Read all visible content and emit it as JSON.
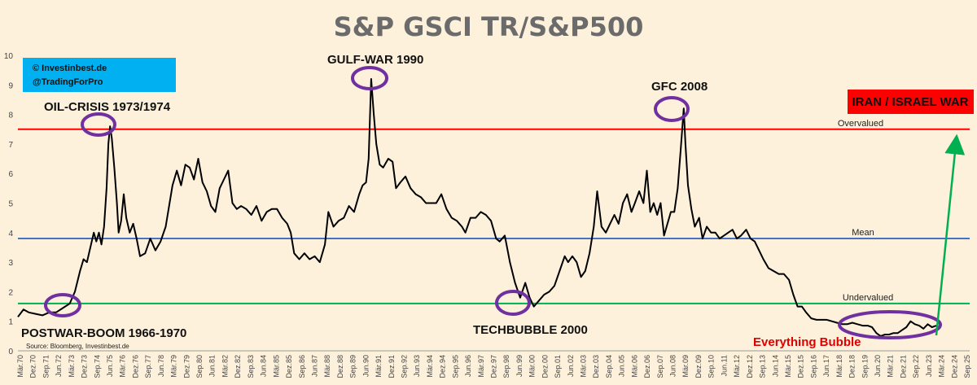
{
  "chart_data": {
    "type": "line",
    "title": "S&P GSCI TR/S&P500",
    "xlabel": "",
    "ylabel": "",
    "ylim": [
      0,
      10
    ],
    "yticks": [
      0,
      1,
      2,
      3,
      4,
      5,
      6,
      7,
      8,
      9,
      10
    ],
    "xlim": [
      1970.17,
      2025.75
    ],
    "xtick_labels": [
      "Mär.70",
      "Dez.70",
      "Sep.71",
      "Jun.72",
      "Mär.73",
      "Dez.73",
      "Sep.74",
      "Jun.75",
      "Mär.76",
      "Dez.76",
      "Sep.77",
      "Jun.78",
      "Mär.79",
      "Dez.79",
      "Sep.80",
      "Jun.81",
      "Mär.82",
      "Dez.82",
      "Sep.83",
      "Jun.84",
      "Mär.85",
      "Dez.85",
      "Sep.86",
      "Jun.87",
      "Mär.88",
      "Dez.88",
      "Sep.89",
      "Jun.90",
      "Mär.91",
      "Dez.91",
      "Sep.92",
      "Jun.93",
      "Mär.94",
      "Dez.94",
      "Sep.95",
      "Jun.96",
      "Mär.97",
      "Dez.97",
      "Sep.98",
      "Jun.99",
      "Mär.00",
      "Dez.00",
      "Sep.01",
      "Jun.02",
      "Mär.03",
      "Dez.03",
      "Sep.04",
      "Jun.05",
      "Mär.06",
      "Dez.06",
      "Sep.07",
      "Jun.08",
      "Mär.09",
      "Dez.09",
      "Sep.10",
      "Jun.11",
      "Mär.12",
      "Dez.12",
      "Sep.13",
      "Jun.14",
      "Mär.15",
      "Dez.15",
      "Sep.16",
      "Jun.17",
      "Mär.18",
      "Dez.18",
      "Sep.19",
      "Jun.20",
      "Mär.21",
      "Dez.21",
      "Sep.22",
      "Jun.23",
      "Mär.24",
      "Dez.24",
      "Sep.25"
    ],
    "grid": false,
    "series": [
      {
        "color": "#000000",
        "points": [
          [
            1970.17,
            1.15
          ],
          [
            1970.5,
            1.4
          ],
          [
            1970.8,
            1.3
          ],
          [
            1971.2,
            1.25
          ],
          [
            1971.6,
            1.2
          ],
          [
            1972.0,
            1.3
          ],
          [
            1972.4,
            1.3
          ],
          [
            1972.8,
            1.45
          ],
          [
            1973.2,
            1.6
          ],
          [
            1973.5,
            2.0
          ],
          [
            1973.8,
            2.7
          ],
          [
            1974.0,
            3.1
          ],
          [
            1974.2,
            3.0
          ],
          [
            1974.4,
            3.5
          ],
          [
            1974.6,
            4.0
          ],
          [
            1974.75,
            3.7
          ],
          [
            1974.9,
            4.0
          ],
          [
            1975.05,
            3.6
          ],
          [
            1975.2,
            4.2
          ],
          [
            1975.35,
            5.5
          ],
          [
            1975.45,
            7.0
          ],
          [
            1975.55,
            7.6
          ],
          [
            1975.65,
            7.2
          ],
          [
            1975.8,
            6.2
          ],
          [
            1975.95,
            5.0
          ],
          [
            1976.05,
            4.0
          ],
          [
            1976.2,
            4.4
          ],
          [
            1976.35,
            5.3
          ],
          [
            1976.5,
            4.5
          ],
          [
            1976.7,
            4.0
          ],
          [
            1976.9,
            4.3
          ],
          [
            1977.1,
            3.8
          ],
          [
            1977.3,
            3.2
          ],
          [
            1977.6,
            3.3
          ],
          [
            1977.9,
            3.8
          ],
          [
            1978.2,
            3.4
          ],
          [
            1978.5,
            3.7
          ],
          [
            1978.8,
            4.2
          ],
          [
            1979.0,
            4.9
          ],
          [
            1979.2,
            5.6
          ],
          [
            1979.45,
            6.1
          ],
          [
            1979.7,
            5.6
          ],
          [
            1979.95,
            6.3
          ],
          [
            1980.2,
            6.2
          ],
          [
            1980.45,
            5.8
          ],
          [
            1980.7,
            6.5
          ],
          [
            1980.95,
            5.7
          ],
          [
            1981.2,
            5.4
          ],
          [
            1981.45,
            4.9
          ],
          [
            1981.7,
            4.7
          ],
          [
            1981.95,
            5.5
          ],
          [
            1982.2,
            5.8
          ],
          [
            1982.45,
            6.1
          ],
          [
            1982.7,
            5.0
          ],
          [
            1982.95,
            4.8
          ],
          [
            1983.2,
            4.9
          ],
          [
            1983.5,
            4.8
          ],
          [
            1983.8,
            4.6
          ],
          [
            1984.1,
            4.9
          ],
          [
            1984.4,
            4.4
          ],
          [
            1984.7,
            4.7
          ],
          [
            1985.0,
            4.8
          ],
          [
            1985.3,
            4.8
          ],
          [
            1985.6,
            4.5
          ],
          [
            1985.9,
            4.3
          ],
          [
            1986.1,
            4.0
          ],
          [
            1986.3,
            3.3
          ],
          [
            1986.6,
            3.1
          ],
          [
            1986.9,
            3.3
          ],
          [
            1987.2,
            3.1
          ],
          [
            1987.5,
            3.2
          ],
          [
            1987.8,
            3.0
          ],
          [
            1988.1,
            3.6
          ],
          [
            1988.3,
            4.7
          ],
          [
            1988.6,
            4.2
          ],
          [
            1988.9,
            4.4
          ],
          [
            1989.2,
            4.5
          ],
          [
            1989.5,
            4.9
          ],
          [
            1989.8,
            4.7
          ],
          [
            1990.1,
            5.3
          ],
          [
            1990.3,
            5.6
          ],
          [
            1990.5,
            5.7
          ],
          [
            1990.65,
            6.5
          ],
          [
            1990.8,
            9.2
          ],
          [
            1990.95,
            8.0
          ],
          [
            1991.1,
            7.0
          ],
          [
            1991.3,
            6.3
          ],
          [
            1991.5,
            6.2
          ],
          [
            1991.8,
            6.5
          ],
          [
            1992.05,
            6.4
          ],
          [
            1992.25,
            5.5
          ],
          [
            1992.5,
            5.7
          ],
          [
            1992.8,
            5.9
          ],
          [
            1993.1,
            5.5
          ],
          [
            1993.4,
            5.3
          ],
          [
            1993.7,
            5.2
          ],
          [
            1994.0,
            5.0
          ],
          [
            1994.3,
            5.0
          ],
          [
            1994.6,
            5.0
          ],
          [
            1994.9,
            5.3
          ],
          [
            1995.2,
            4.8
          ],
          [
            1995.5,
            4.5
          ],
          [
            1995.8,
            4.4
          ],
          [
            1996.1,
            4.2
          ],
          [
            1996.3,
            4.0
          ],
          [
            1996.6,
            4.5
          ],
          [
            1996.9,
            4.5
          ],
          [
            1997.2,
            4.7
          ],
          [
            1997.5,
            4.6
          ],
          [
            1997.8,
            4.4
          ],
          [
            1998.1,
            3.8
          ],
          [
            1998.3,
            3.7
          ],
          [
            1998.6,
            3.9
          ],
          [
            1998.9,
            3.0
          ],
          [
            1999.2,
            2.3
          ],
          [
            1999.5,
            1.8
          ],
          [
            1999.8,
            2.3
          ],
          [
            2000.05,
            1.8
          ],
          [
            2000.3,
            1.5
          ],
          [
            2000.6,
            1.7
          ],
          [
            2000.9,
            1.9
          ],
          [
            2001.2,
            2.0
          ],
          [
            2001.5,
            2.2
          ],
          [
            2001.8,
            2.7
          ],
          [
            2002.1,
            3.2
          ],
          [
            2002.3,
            3.0
          ],
          [
            2002.55,
            3.2
          ],
          [
            2002.8,
            3.0
          ],
          [
            2003.05,
            2.5
          ],
          [
            2003.3,
            2.7
          ],
          [
            2003.55,
            3.3
          ],
          [
            2003.8,
            4.2
          ],
          [
            2004.0,
            5.4
          ],
          [
            2004.25,
            4.2
          ],
          [
            2004.5,
            4.0
          ],
          [
            2004.75,
            4.3
          ],
          [
            2005.0,
            4.6
          ],
          [
            2005.25,
            4.3
          ],
          [
            2005.5,
            5.0
          ],
          [
            2005.75,
            5.3
          ],
          [
            2006.0,
            4.7
          ],
          [
            2006.2,
            5.0
          ],
          [
            2006.45,
            5.4
          ],
          [
            2006.7,
            5.0
          ],
          [
            2006.9,
            6.1
          ],
          [
            2007.1,
            4.7
          ],
          [
            2007.3,
            5.0
          ],
          [
            2007.5,
            4.6
          ],
          [
            2007.7,
            5.0
          ],
          [
            2007.9,
            3.9
          ],
          [
            2008.1,
            4.3
          ],
          [
            2008.3,
            4.7
          ],
          [
            2008.5,
            4.7
          ],
          [
            2008.7,
            5.5
          ],
          [
            2008.9,
            7.0
          ],
          [
            2009.05,
            8.2
          ],
          [
            2009.15,
            7.0
          ],
          [
            2009.3,
            5.6
          ],
          [
            2009.5,
            4.8
          ],
          [
            2009.7,
            4.2
          ],
          [
            2009.95,
            4.5
          ],
          [
            2010.15,
            3.8
          ],
          [
            2010.4,
            4.2
          ],
          [
            2010.65,
            4.0
          ],
          [
            2010.9,
            4.0
          ],
          [
            2011.15,
            3.8
          ],
          [
            2011.4,
            3.9
          ],
          [
            2011.65,
            4.0
          ],
          [
            2011.9,
            4.1
          ],
          [
            2012.15,
            3.8
          ],
          [
            2012.4,
            3.9
          ],
          [
            2012.7,
            4.1
          ],
          [
            2012.95,
            3.8
          ],
          [
            2013.2,
            3.7
          ],
          [
            2013.45,
            3.4
          ],
          [
            2013.7,
            3.1
          ],
          [
            2014.0,
            2.8
          ],
          [
            2014.3,
            2.7
          ],
          [
            2014.6,
            2.6
          ],
          [
            2014.9,
            2.6
          ],
          [
            2015.2,
            2.4
          ],
          [
            2015.45,
            1.9
          ],
          [
            2015.7,
            1.5
          ],
          [
            2015.95,
            1.5
          ],
          [
            2016.2,
            1.3
          ],
          [
            2016.5,
            1.1
          ],
          [
            2016.8,
            1.05
          ],
          [
            2017.1,
            1.05
          ],
          [
            2017.4,
            1.05
          ],
          [
            2017.7,
            1.0
          ],
          [
            2018.0,
            0.95
          ],
          [
            2018.3,
            0.9
          ],
          [
            2018.6,
            0.9
          ],
          [
            2018.9,
            0.95
          ],
          [
            2019.2,
            0.9
          ],
          [
            2019.5,
            0.85
          ],
          [
            2019.8,
            0.85
          ],
          [
            2020.05,
            0.8
          ],
          [
            2020.3,
            0.6
          ],
          [
            2020.55,
            0.5
          ],
          [
            2020.8,
            0.55
          ],
          [
            2021.05,
            0.55
          ],
          [
            2021.3,
            0.6
          ],
          [
            2021.55,
            0.6
          ],
          [
            2021.8,
            0.7
          ],
          [
            2022.05,
            0.8
          ],
          [
            2022.3,
            1.0
          ],
          [
            2022.55,
            0.9
          ],
          [
            2022.8,
            0.85
          ],
          [
            2023.05,
            0.75
          ],
          [
            2023.3,
            0.9
          ],
          [
            2023.55,
            0.8
          ],
          [
            2023.8,
            0.85
          ]
        ]
      }
    ],
    "reference_lines": [
      {
        "y": 7.5,
        "label": "Overvalued",
        "color": "#ff0000"
      },
      {
        "y": 3.8,
        "label": "Mean",
        "color": "#4472c4"
      },
      {
        "y": 1.6,
        "label": "Undervalued",
        "color": "#00b050"
      }
    ],
    "annotations": [
      {
        "text": "OIL-CRISIS 1973/1974",
        "x": 1975.55,
        "y": 7.6
      },
      {
        "text": "GULF-WAR 1990",
        "x": 1990.8,
        "y": 9.2
      },
      {
        "text": "GFC 2008",
        "x": 2009.05,
        "y": 8.2
      },
      {
        "text": "POSTWAR-BOOM 1966-1970",
        "x": 1973.0,
        "y": 1.6
      },
      {
        "text": "TECHBUBBLE 2000",
        "x": 2000.3,
        "y": 1.55
      },
      {
        "text": "Everything Bubble",
        "x": 2021.5,
        "y": 0.8
      },
      {
        "text": "IRAN / ISRAEL WAR",
        "x": 2024.2,
        "y": 8.1
      }
    ],
    "credit": [
      "© Investinbest.de",
      "@TradingForPro"
    ],
    "source": "Source: Bloomberg, Investinbest.de",
    "colors": {
      "background": "#fdf1dc",
      "line": "#000000",
      "circles": "#7030a0",
      "arrow": "#00b050",
      "credit_box": "#00b0f0",
      "war_box": "#ff0000"
    }
  }
}
